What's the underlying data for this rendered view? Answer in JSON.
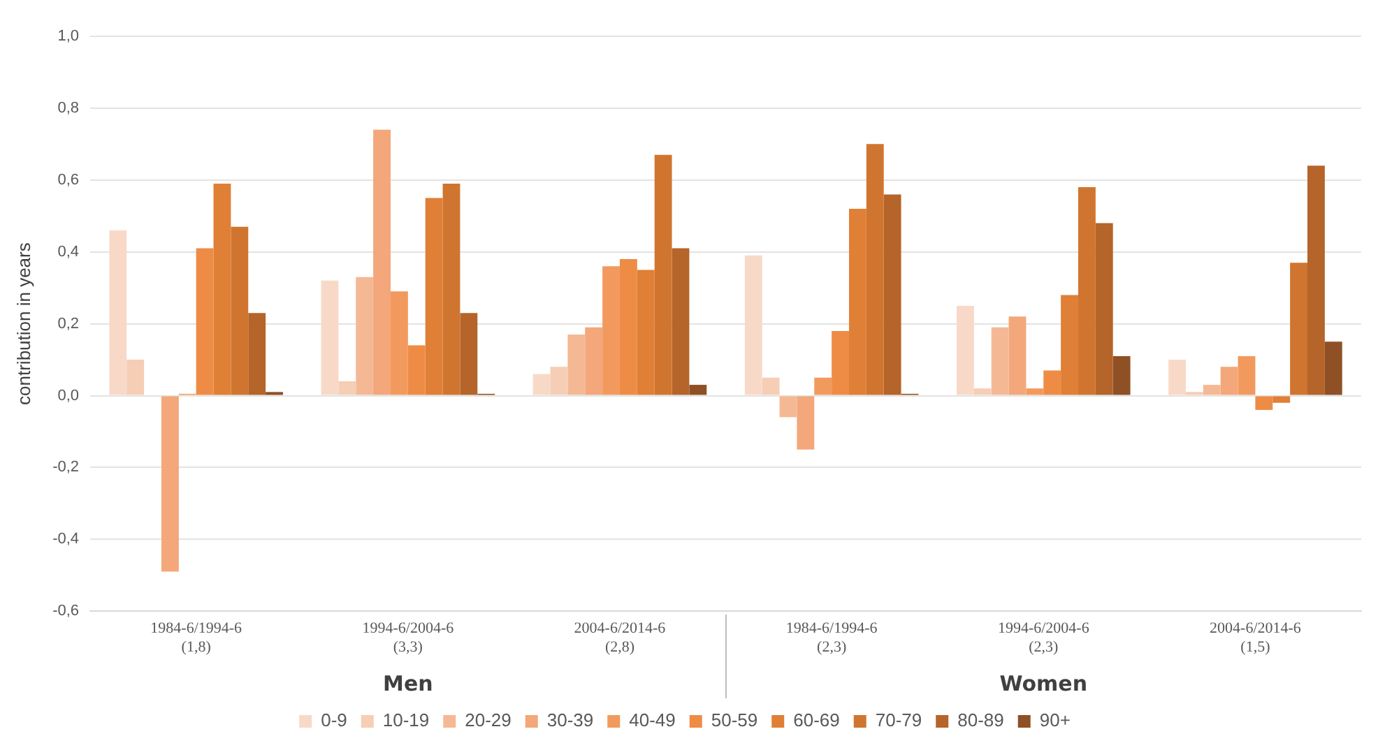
{
  "chart_data": {
    "type": "bar",
    "ylabel": "contribution in years",
    "categories": [
      "1984-6/1994-6 (1,8)",
      "1994-6/2004-6 (3,3)",
      "2004-6/2014-6 (2,8)",
      "1984-6/1994-6 (2,3)",
      "1994-6/2004-6 (2,3)",
      "2004-6/2014-6 (1,5)"
    ],
    "annotations": [
      "Men",
      "Women"
    ],
    "series": [
      {
        "name": "0-9",
        "color": "#f8d9c8",
        "values": [
          0.46,
          0.32,
          0.06,
          0.39,
          0.25,
          0.1
        ]
      },
      {
        "name": "10-19",
        "color": "#f6cdb5",
        "values": [
          0.1,
          0.04,
          0.08,
          0.05,
          0.02,
          0.01
        ]
      },
      {
        "name": "20-29",
        "color": "#f4b994",
        "values": [
          0.0,
          0.33,
          0.17,
          -0.06,
          0.19,
          0.03
        ]
      },
      {
        "name": "30-39",
        "color": "#f3a77a",
        "values": [
          -0.49,
          0.74,
          0.19,
          -0.15,
          0.22,
          0.08
        ]
      },
      {
        "name": "40-49",
        "color": "#f29a5e",
        "values": [
          0.005,
          0.29,
          0.36,
          0.05,
          0.02,
          0.11
        ]
      },
      {
        "name": "50-59",
        "color": "#ee8c46",
        "values": [
          0.41,
          0.14,
          0.38,
          0.18,
          0.07,
          -0.04
        ]
      },
      {
        "name": "60-69",
        "color": "#e07f36",
        "values": [
          0.59,
          0.55,
          0.35,
          0.52,
          0.28,
          -0.02
        ]
      },
      {
        "name": "70-79",
        "color": "#d0752f",
        "values": [
          0.47,
          0.59,
          0.67,
          0.7,
          0.58,
          0.37
        ]
      },
      {
        "name": "80-89",
        "color": "#b5642a",
        "values": [
          0.23,
          0.23,
          0.41,
          0.56,
          0.48,
          0.64
        ]
      },
      {
        "name": "90+",
        "color": "#8e5024",
        "values": [
          0.01,
          0.005,
          0.03,
          0.005,
          0.11,
          0.15
        ]
      }
    ],
    "ylim": [
      -0.6,
      1.0
    ],
    "yticks": [
      {
        "value": -0.6,
        "label": "-0,6"
      },
      {
        "value": -0.4,
        "label": "-0,4"
      },
      {
        "value": -0.2,
        "label": "-0,2"
      },
      {
        "value": 0,
        "label": "0,0"
      },
      {
        "value": 0.2,
        "label": "0,2"
      },
      {
        "value": 0.4,
        "label": "0,4"
      },
      {
        "value": 0.6,
        "label": "0,6"
      },
      {
        "value": 0.8,
        "label": "0,8"
      },
      {
        "value": 1.0,
        "label": "1,0"
      }
    ],
    "grid": "y",
    "legend": "bottom"
  }
}
